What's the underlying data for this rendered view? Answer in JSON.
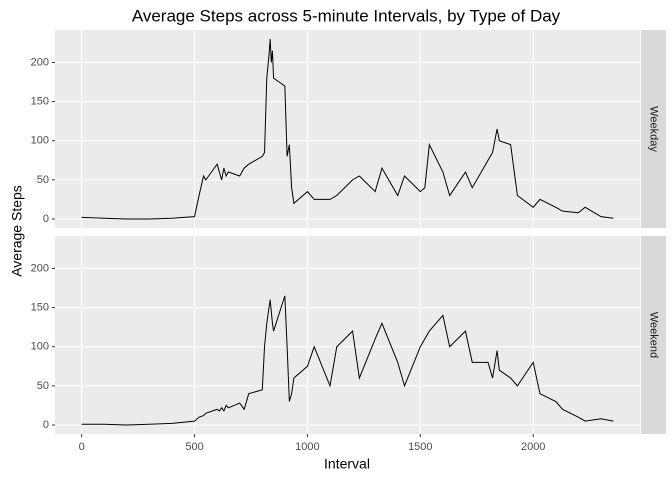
{
  "chart_data": {
    "type": "line",
    "title": "Average Steps across 5-minute Intervals, by Type of Day",
    "x_label": "Interval",
    "y_label": "Average Steps",
    "x": [
      0,
      100,
      200,
      300,
      400,
      500,
      520,
      540,
      550,
      600,
      610,
      620,
      630,
      640,
      650,
      700,
      720,
      740,
      800,
      810,
      820,
      830,
      835,
      840,
      845,
      850,
      900,
      910,
      920,
      930,
      940,
      1000,
      1030,
      1100,
      1130,
      1200,
      1230,
      1300,
      1330,
      1400,
      1430,
      1500,
      1520,
      1540,
      1600,
      1630,
      1700,
      1730,
      1800,
      1820,
      1840,
      1850,
      1900,
      1930,
      2000,
      2030,
      2100,
      2130,
      2200,
      2230,
      2300,
      2355
    ],
    "series": [
      {
        "name": "Weekday",
        "color": "#000000",
        "values": [
          2,
          1,
          0,
          0,
          1,
          3,
          30,
          55,
          50,
          70,
          60,
          50,
          65,
          55,
          60,
          55,
          65,
          70,
          80,
          85,
          180,
          210,
          230,
          200,
          215,
          180,
          170,
          80,
          95,
          40,
          20,
          35,
          25,
          25,
          30,
          50,
          55,
          35,
          65,
          30,
          55,
          35,
          40,
          95,
          60,
          30,
          60,
          40,
          75,
          85,
          115,
          100,
          95,
          30,
          15,
          25,
          15,
          10,
          8,
          15,
          3,
          1
        ]
      },
      {
        "name": "Weekend",
        "color": "#000000",
        "values": [
          1,
          1,
          0,
          1,
          2,
          5,
          10,
          12,
          15,
          20,
          18,
          22,
          18,
          25,
          22,
          28,
          20,
          40,
          45,
          100,
          130,
          150,
          160,
          145,
          130,
          120,
          165,
          100,
          30,
          40,
          60,
          75,
          100,
          50,
          100,
          120,
          60,
          110,
          130,
          80,
          50,
          100,
          110,
          120,
          140,
          100,
          120,
          80,
          80,
          60,
          95,
          70,
          60,
          50,
          80,
          40,
          30,
          20,
          10,
          5,
          8,
          5
        ]
      }
    ],
    "xlim": [
      -118,
      2473
    ],
    "ylim": [
      -11.5,
      241.5
    ],
    "xticks": [
      0,
      500,
      1000,
      1500,
      2000
    ],
    "yticks": [
      0,
      50,
      100,
      150,
      200
    ],
    "grid": true
  }
}
